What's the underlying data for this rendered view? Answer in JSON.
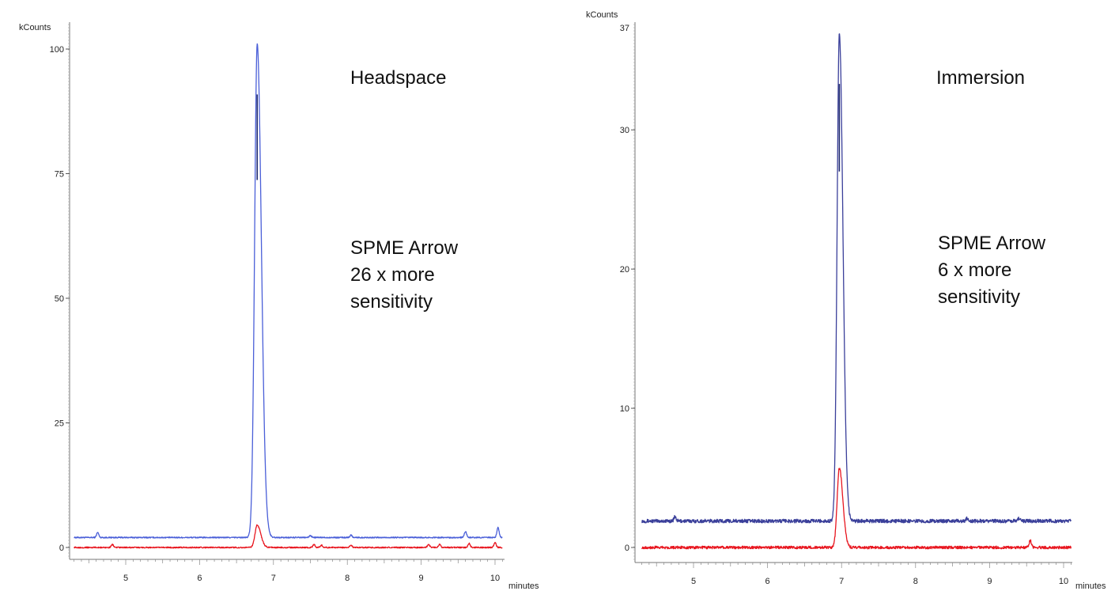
{
  "chart_data": [
    {
      "type": "line",
      "title": "",
      "ylabel": "kCounts",
      "xlabel": "minutes",
      "xlim": [
        4.3,
        10.1
      ],
      "ylim": [
        -5,
        105
      ],
      "y_top_tick": "",
      "x_ticks": [
        5,
        6,
        7,
        8,
        9,
        10
      ],
      "y_ticks": [
        0,
        25,
        50,
        75,
        100
      ],
      "grid": false,
      "annotations": [
        "Headspace",
        "SPME Arrow",
        "26 x more",
        "sensitivity"
      ],
      "series": [
        {
          "color": "#4a5fd8",
          "peak_color": "#1f2a6e",
          "baseline": 2.0,
          "peak_x": 6.78,
          "peak_y": 101,
          "peak_width": 0.035,
          "noise": 0.12,
          "bumps": [
            [
              4.62,
              1.0
            ],
            [
              7.5,
              0.4
            ],
            [
              8.05,
              0.5
            ],
            [
              9.6,
              1.2
            ],
            [
              10.04,
              2.0
            ]
          ]
        },
        {
          "color": "#e8161f",
          "peak_color": "#e8161f",
          "baseline": 0.0,
          "peak_x": 6.78,
          "peak_y": 4.5,
          "peak_width": 0.03,
          "noise": 0.12,
          "bumps": [
            [
              4.82,
              0.6
            ],
            [
              7.55,
              0.6
            ],
            [
              7.65,
              0.5
            ],
            [
              8.05,
              0.5
            ],
            [
              9.1,
              0.6
            ],
            [
              9.25,
              0.6
            ],
            [
              9.65,
              0.8
            ],
            [
              10.0,
              1.0
            ]
          ]
        }
      ]
    },
    {
      "type": "line",
      "title": "",
      "ylabel": "kCounts",
      "xlabel": "minutes",
      "xlim": [
        4.3,
        10.1
      ],
      "ylim": [
        -2,
        37.5
      ],
      "y_top_tick": "37",
      "x_ticks": [
        5,
        6,
        7,
        8,
        9,
        10
      ],
      "y_ticks": [
        0,
        10,
        20,
        30
      ],
      "grid": false,
      "annotations": [
        "Immersion",
        "SPME Arrow",
        "6 x more",
        "sensitivity"
      ],
      "series": [
        {
          "color": "#3a3f9a",
          "peak_color": "#1f2a6e",
          "baseline": 1.9,
          "peak_x": 6.97,
          "peak_y": 37,
          "peak_width": 0.03,
          "noise": 0.13,
          "bumps": [
            [
              4.75,
              0.3
            ],
            [
              8.7,
              0.2
            ],
            [
              9.4,
              0.2
            ]
          ]
        },
        {
          "color": "#e8161f",
          "peak_color": "#e8161f",
          "baseline": 0.0,
          "peak_x": 6.97,
          "peak_y": 5.7,
          "peak_width": 0.03,
          "noise": 0.1,
          "bumps": [
            [
              9.55,
              0.5
            ]
          ]
        }
      ]
    }
  ]
}
